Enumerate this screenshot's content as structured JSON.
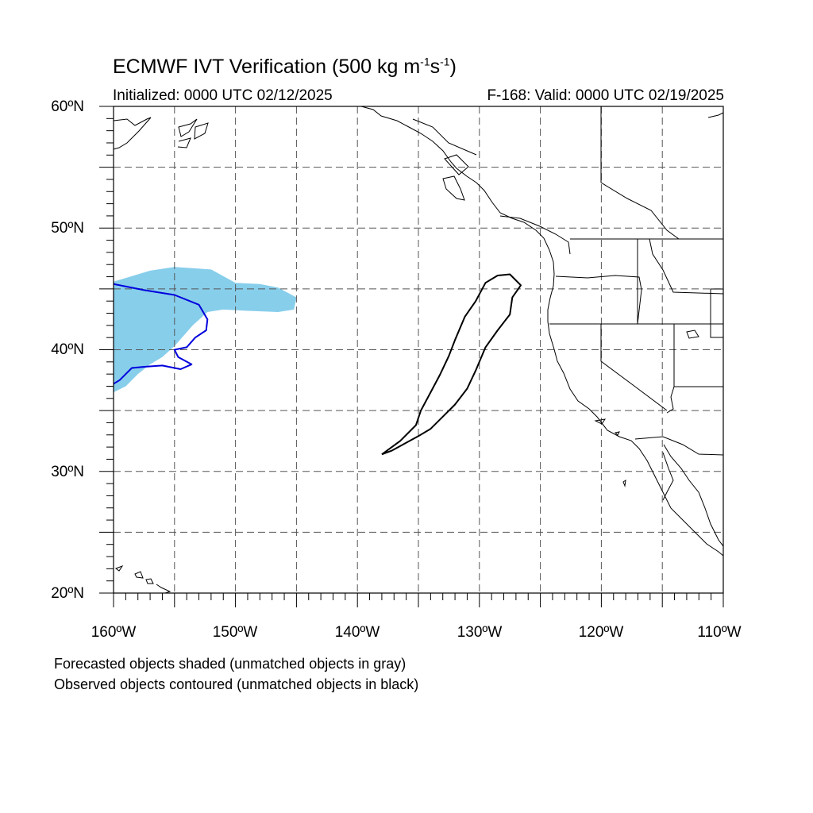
{
  "title": {
    "text": "ECMWF IVT Verification (500 kg m",
    "sup1": "-1",
    "mid": "s",
    "sup2": "-1",
    "end": ")"
  },
  "init_label": "Initialized: 0000 UTC 02/12/2025",
  "valid_label": "F-168: Valid: 0000 UTC 02/19/2025",
  "lat_labels": [
    "60ºN",
    "50ºN",
    "40ºN",
    "30ºN",
    "20ºN"
  ],
  "lon_labels": [
    "160ºW",
    "150ºW",
    "140ºW",
    "130ºW",
    "120ºW",
    "110ºW"
  ],
  "notes": {
    "forecast": "Forecasted objects shaded (unmatched objects in gray)",
    "observed": "Observed objects contoured (unmatched objects in black)"
  },
  "colors": {
    "forecast_matched_fill": "#87ceeb",
    "observed_matched_contour": "#0000dd",
    "observed_unmatched_contour": "#000000",
    "grid": "#555555"
  },
  "chart_data": {
    "type": "map",
    "projection": "cylindrical equidistant",
    "lon_range": [
      -160,
      -110
    ],
    "lat_range": [
      20,
      60
    ],
    "grid_lons": [
      -155,
      -150,
      -145,
      -140,
      -135,
      -130,
      -125,
      -120,
      -115
    ],
    "grid_lats": [
      25,
      30,
      35,
      40,
      45,
      50,
      55
    ],
    "major_lons": [
      -160,
      -150,
      -140,
      -130,
      -120,
      -110
    ],
    "major_lats": [
      20,
      30,
      40,
      50,
      60
    ],
    "forecast_objects": [
      {
        "status": "matched",
        "outline": [
          [
            -160,
            45.6
          ],
          [
            -157,
            46.5
          ],
          [
            -155,
            46.8
          ],
          [
            -152,
            46.6
          ],
          [
            -150,
            45.5
          ],
          [
            -148,
            45.4
          ],
          [
            -146.5,
            45.1
          ],
          [
            -145,
            44.3
          ],
          [
            -145.2,
            43.3
          ],
          [
            -146.5,
            43.1
          ],
          [
            -149,
            43.2
          ],
          [
            -151,
            43.3
          ],
          [
            -152.3,
            43.1
          ],
          [
            -153.5,
            42
          ],
          [
            -155,
            40.3
          ],
          [
            -156,
            39.4
          ],
          [
            -157,
            38.8
          ],
          [
            -158,
            38
          ],
          [
            -159,
            37
          ],
          [
            -160,
            36.5
          ]
        ]
      }
    ],
    "observed_objects": [
      {
        "status": "matched",
        "outline": [
          [
            -160,
            45.4
          ],
          [
            -157.5,
            44.9
          ],
          [
            -155,
            44.5
          ],
          [
            -153,
            43.7
          ],
          [
            -152.3,
            42.5
          ],
          [
            -152.4,
            41.6
          ],
          [
            -153.3,
            41
          ],
          [
            -154,
            40.2
          ],
          [
            -155,
            40
          ],
          [
            -154.7,
            39.4
          ],
          [
            -153.6,
            38.8
          ],
          [
            -154.5,
            38.4
          ],
          [
            -156,
            38.7
          ],
          [
            -157.5,
            38.6
          ],
          [
            -158.5,
            38.5
          ],
          [
            -159.5,
            37.5
          ],
          [
            -160,
            37.2
          ]
        ]
      },
      {
        "status": "unmatched",
        "outline": [
          [
            -138,
            31.4
          ],
          [
            -136.5,
            32.5
          ],
          [
            -135.2,
            33.8
          ],
          [
            -134.8,
            35
          ],
          [
            -134,
            36.5
          ],
          [
            -133.2,
            38
          ],
          [
            -132.5,
            39.5
          ],
          [
            -132,
            40.8
          ],
          [
            -131.2,
            42.7
          ],
          [
            -130.3,
            44
          ],
          [
            -129.5,
            45.5
          ],
          [
            -128.5,
            46.1
          ],
          [
            -127.5,
            46.2
          ],
          [
            -126.6,
            45.3
          ],
          [
            -127.3,
            44.3
          ],
          [
            -127.5,
            42.9
          ],
          [
            -128.5,
            41.6
          ],
          [
            -129.5,
            40.2
          ],
          [
            -130.3,
            38.3
          ],
          [
            -131,
            36.8
          ],
          [
            -132,
            35.5
          ],
          [
            -133.2,
            34.3
          ],
          [
            -134,
            33.5
          ],
          [
            -135,
            32.9
          ],
          [
            -137.2,
            31.7
          ],
          [
            -138,
            31.4
          ]
        ]
      }
    ]
  }
}
